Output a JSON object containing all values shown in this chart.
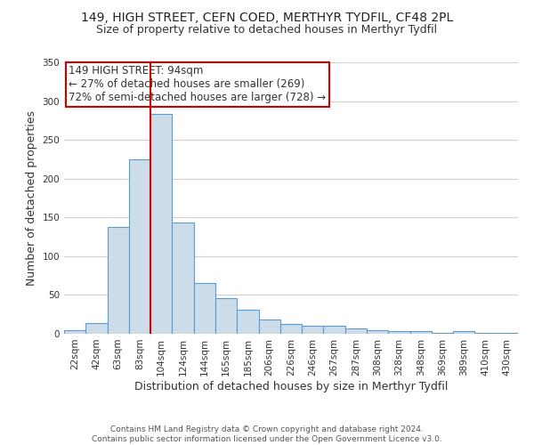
{
  "title": "149, HIGH STREET, CEFN COED, MERTHYR TYDFIL, CF48 2PL",
  "subtitle": "Size of property relative to detached houses in Merthyr Tydfil",
  "xlabel": "Distribution of detached houses by size in Merthyr Tydfil",
  "ylabel": "Number of detached properties",
  "categories": [
    "22sqm",
    "42sqm",
    "63sqm",
    "83sqm",
    "104sqm",
    "124sqm",
    "144sqm",
    "165sqm",
    "185sqm",
    "206sqm",
    "226sqm",
    "246sqm",
    "267sqm",
    "287sqm",
    "308sqm",
    "328sqm",
    "348sqm",
    "369sqm",
    "389sqm",
    "410sqm",
    "430sqm"
  ],
  "values": [
    5,
    14,
    138,
    225,
    284,
    143,
    65,
    46,
    31,
    18,
    13,
    10,
    10,
    7,
    5,
    4,
    3,
    1,
    3,
    1,
    1
  ],
  "bar_color": "#ccdce8",
  "bar_edge_color": "#5b9bd5",
  "annotation_title": "149 HIGH STREET: 94sqm",
  "annotation_line1": "← 27% of detached houses are smaller (269)",
  "annotation_line2": "72% of semi-detached houses are larger (728) →",
  "annotation_box_color": "#ffffff",
  "annotation_box_edge": "#cc0000",
  "red_line_color": "#cc0000",
  "ylim": [
    0,
    350
  ],
  "yticks": [
    0,
    50,
    100,
    150,
    200,
    250,
    300,
    350
  ],
  "footer1": "Contains HM Land Registry data © Crown copyright and database right 2024.",
  "footer2": "Contains public sector information licensed under the Open Government Licence v3.0.",
  "background_color": "#ffffff",
  "grid_color": "#d0d0d0",
  "title_fontsize": 10,
  "subtitle_fontsize": 9,
  "axis_label_fontsize": 9,
  "tick_fontsize": 7.5,
  "annotation_fontsize": 8.5,
  "footer_fontsize": 6.5
}
